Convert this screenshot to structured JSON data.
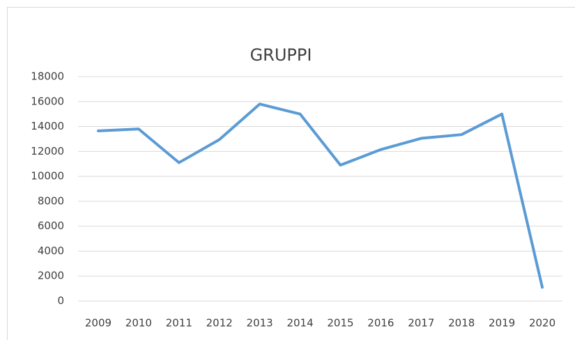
{
  "chart_data": {
    "type": "line",
    "title": "GRUPPI",
    "categories": [
      "2009",
      "2010",
      "2011",
      "2012",
      "2013",
      "2014",
      "2015",
      "2016",
      "2017",
      "2018",
      "2019",
      "2020"
    ],
    "series": [
      {
        "name": "GRUPPI",
        "color": "#5b9bd5",
        "values": [
          13650,
          13800,
          11100,
          12950,
          15800,
          15000,
          10900,
          12150,
          13050,
          13350,
          15000,
          1100
        ]
      }
    ],
    "ylim": [
      0,
      18000
    ],
    "yticks": [
      0,
      2000,
      4000,
      6000,
      8000,
      10000,
      12000,
      14000,
      16000,
      18000
    ],
    "grid": true
  }
}
